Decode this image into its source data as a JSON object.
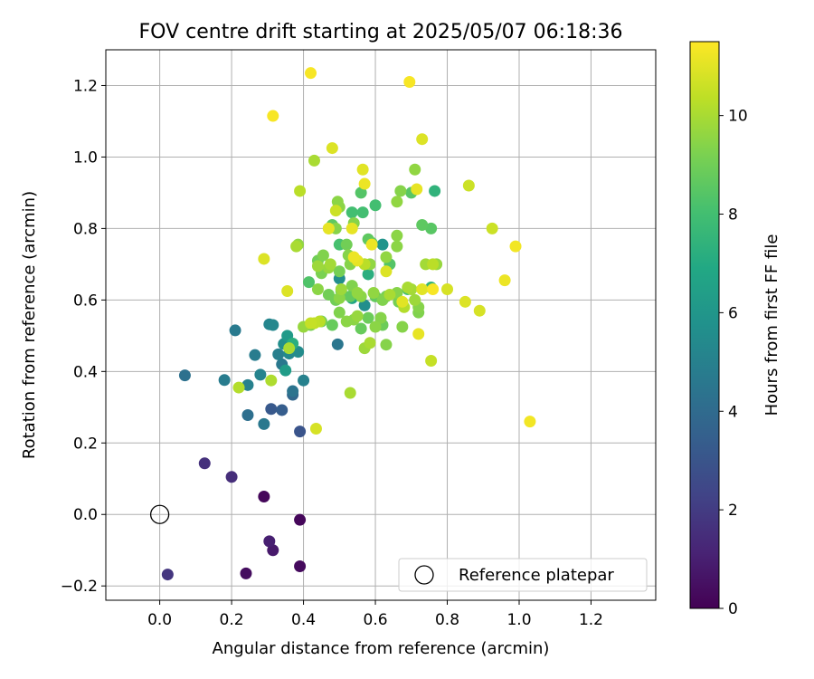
{
  "chart_data": {
    "type": "scatter",
    "title": "FOV centre drift starting at 2025/05/07 06:18:36",
    "xlabel": "Angular distance from reference (arcmin)",
    "ylabel": "Rotation from reference (arcmin)",
    "xlim": [
      -0.15,
      1.38
    ],
    "ylim": [
      -0.24,
      1.3
    ],
    "xticks": [
      0.0,
      0.2,
      0.4,
      0.6,
      0.8,
      1.0,
      1.2
    ],
    "xtick_labels": [
      "0.0",
      "0.2",
      "0.4",
      "0.6",
      "0.8",
      "1.0",
      "1.2"
    ],
    "yticks": [
      -0.2,
      0.0,
      0.2,
      0.4,
      0.6,
      0.8,
      1.0,
      1.2
    ],
    "ytick_labels": [
      "−0.2",
      "0.0",
      "0.2",
      "0.4",
      "0.6",
      "0.8",
      "1.0",
      "1.2"
    ],
    "grid": true,
    "legend": {
      "placement": "lower-right",
      "entries": [
        "Reference platepar"
      ]
    },
    "colorbar": {
      "label": "Hours from first FF file",
      "range": [
        0,
        11.5
      ],
      "ticks": [
        0,
        2,
        4,
        6,
        8,
        10
      ],
      "tick_labels": [
        "0",
        "2",
        "4",
        "6",
        "8",
        "10"
      ],
      "colormap": "viridis"
    },
    "reference": {
      "label": "Reference platepar",
      "x": 0.0,
      "y": 0.0
    },
    "points": [
      {
        "x": 0.29,
        "y": 0.05,
        "t": 0.2
      },
      {
        "x": 0.39,
        "y": -0.015,
        "t": 0.2
      },
      {
        "x": 0.39,
        "y": -0.145,
        "t": 0.3
      },
      {
        "x": 0.24,
        "y": -0.165,
        "t": 0.4
      },
      {
        "x": 0.315,
        "y": -0.1,
        "t": 0.8
      },
      {
        "x": 0.305,
        "y": -0.075,
        "t": 1.0
      },
      {
        "x": 0.2,
        "y": 0.105,
        "t": 1.5
      },
      {
        "x": 0.125,
        "y": 0.143,
        "t": 1.6
      },
      {
        "x": 0.022,
        "y": -0.168,
        "t": 1.8
      },
      {
        "x": 0.39,
        "y": 0.232,
        "t": 3.0
      },
      {
        "x": 0.31,
        "y": 0.295,
        "t": 3.2
      },
      {
        "x": 0.34,
        "y": 0.292,
        "t": 3.4
      },
      {
        "x": 0.37,
        "y": 0.335,
        "t": 3.8
      },
      {
        "x": 0.245,
        "y": 0.278,
        "t": 4.2
      },
      {
        "x": 0.07,
        "y": 0.389,
        "t": 4.3
      },
      {
        "x": 0.37,
        "y": 0.345,
        "t": 4.4
      },
      {
        "x": 0.495,
        "y": 0.476,
        "t": 4.5
      },
      {
        "x": 0.29,
        "y": 0.253,
        "t": 4.6
      },
      {
        "x": 0.34,
        "y": 0.42,
        "t": 4.6
      },
      {
        "x": 0.21,
        "y": 0.515,
        "t": 4.7
      },
      {
        "x": 0.18,
        "y": 0.376,
        "t": 4.8
      },
      {
        "x": 0.265,
        "y": 0.446,
        "t": 4.8
      },
      {
        "x": 0.33,
        "y": 0.448,
        "t": 4.9
      },
      {
        "x": 0.4,
        "y": 0.375,
        "t": 5.0
      },
      {
        "x": 0.245,
        "y": 0.362,
        "t": 5.0
      },
      {
        "x": 0.28,
        "y": 0.391,
        "t": 5.1
      },
      {
        "x": 0.305,
        "y": 0.532,
        "t": 5.2
      },
      {
        "x": 0.315,
        "y": 0.53,
        "t": 5.3
      },
      {
        "x": 0.36,
        "y": 0.45,
        "t": 5.4
      },
      {
        "x": 0.385,
        "y": 0.455,
        "t": 5.5
      },
      {
        "x": 0.345,
        "y": 0.477,
        "t": 5.6
      },
      {
        "x": 0.5,
        "y": 0.66,
        "t": 5.6
      },
      {
        "x": 0.57,
        "y": 0.585,
        "t": 5.6
      },
      {
        "x": 0.62,
        "y": 0.755,
        "t": 5.9
      },
      {
        "x": 0.355,
        "y": 0.5,
        "t": 6.2
      },
      {
        "x": 0.35,
        "y": 0.403,
        "t": 6.3
      },
      {
        "x": 0.535,
        "y": 0.605,
        "t": 6.8
      },
      {
        "x": 0.37,
        "y": 0.478,
        "t": 7.2
      },
      {
        "x": 0.58,
        "y": 0.672,
        "t": 7.2
      },
      {
        "x": 0.765,
        "y": 0.905,
        "t": 7.4
      },
      {
        "x": 0.755,
        "y": 0.635,
        "t": 7.5
      },
      {
        "x": 0.535,
        "y": 0.845,
        "t": 8.0
      },
      {
        "x": 0.565,
        "y": 0.845,
        "t": 8.0
      },
      {
        "x": 0.6,
        "y": 0.865,
        "t": 8.0
      },
      {
        "x": 0.69,
        "y": 0.63,
        "t": 8.1
      },
      {
        "x": 0.5,
        "y": 0.755,
        "t": 8.1
      },
      {
        "x": 0.415,
        "y": 0.65,
        "t": 8.3
      },
      {
        "x": 0.56,
        "y": 0.9,
        "t": 8.4
      },
      {
        "x": 0.64,
        "y": 0.7,
        "t": 8.4
      },
      {
        "x": 0.7,
        "y": 0.9,
        "t": 8.5
      },
      {
        "x": 0.755,
        "y": 0.8,
        "t": 8.5
      },
      {
        "x": 0.73,
        "y": 0.81,
        "t": 8.6
      },
      {
        "x": 0.48,
        "y": 0.81,
        "t": 8.6
      },
      {
        "x": 0.58,
        "y": 0.77,
        "t": 8.6
      },
      {
        "x": 0.59,
        "y": 0.76,
        "t": 8.7
      },
      {
        "x": 0.53,
        "y": 0.61,
        "t": 8.7
      },
      {
        "x": 0.6,
        "y": 0.61,
        "t": 8.7
      },
      {
        "x": 0.56,
        "y": 0.52,
        "t": 8.8
      },
      {
        "x": 0.48,
        "y": 0.53,
        "t": 8.8
      },
      {
        "x": 0.505,
        "y": 0.625,
        "t": 8.8
      },
      {
        "x": 0.58,
        "y": 0.55,
        "t": 8.9
      },
      {
        "x": 0.62,
        "y": 0.53,
        "t": 8.9
      },
      {
        "x": 0.49,
        "y": 0.6,
        "t": 9.0
      },
      {
        "x": 0.44,
        "y": 0.71,
        "t": 9.0
      },
      {
        "x": 0.57,
        "y": 0.7,
        "t": 9.0
      },
      {
        "x": 0.52,
        "y": 0.755,
        "t": 9.0
      },
      {
        "x": 0.47,
        "y": 0.615,
        "t": 9.0
      },
      {
        "x": 0.45,
        "y": 0.54,
        "t": 9.1
      },
      {
        "x": 0.5,
        "y": 0.68,
        "t": 9.1
      },
      {
        "x": 0.63,
        "y": 0.61,
        "t": 9.1
      },
      {
        "x": 0.665,
        "y": 0.595,
        "t": 9.1
      },
      {
        "x": 0.42,
        "y": 0.53,
        "t": 9.2
      },
      {
        "x": 0.45,
        "y": 0.675,
        "t": 9.2
      },
      {
        "x": 0.72,
        "y": 0.565,
        "t": 9.3
      },
      {
        "x": 0.62,
        "y": 0.6,
        "t": 9.3
      },
      {
        "x": 0.535,
        "y": 0.64,
        "t": 9.3
      },
      {
        "x": 0.5,
        "y": 0.565,
        "t": 9.3
      },
      {
        "x": 0.455,
        "y": 0.725,
        "t": 9.3
      },
      {
        "x": 0.54,
        "y": 0.815,
        "t": 9.4
      },
      {
        "x": 0.525,
        "y": 0.725,
        "t": 9.4
      },
      {
        "x": 0.675,
        "y": 0.525,
        "t": 9.4
      },
      {
        "x": 0.615,
        "y": 0.55,
        "t": 9.4
      },
      {
        "x": 0.67,
        "y": 0.905,
        "t": 9.4
      },
      {
        "x": 0.53,
        "y": 0.7,
        "t": 9.4
      },
      {
        "x": 0.63,
        "y": 0.475,
        "t": 9.4
      },
      {
        "x": 0.66,
        "y": 0.62,
        "t": 9.4
      },
      {
        "x": 0.49,
        "y": 0.8,
        "t": 9.4
      },
      {
        "x": 0.72,
        "y": 0.58,
        "t": 9.4
      },
      {
        "x": 0.54,
        "y": 0.545,
        "t": 9.5
      },
      {
        "x": 0.52,
        "y": 0.54,
        "t": 9.5
      },
      {
        "x": 0.5,
        "y": 0.605,
        "t": 9.5
      },
      {
        "x": 0.6,
        "y": 0.525,
        "t": 9.5
      },
      {
        "x": 0.5,
        "y": 0.86,
        "t": 9.5
      },
      {
        "x": 0.495,
        "y": 0.875,
        "t": 9.5
      },
      {
        "x": 0.44,
        "y": 0.63,
        "t": 9.5
      },
      {
        "x": 0.66,
        "y": 0.75,
        "t": 9.5
      },
      {
        "x": 0.66,
        "y": 0.78,
        "t": 9.5
      },
      {
        "x": 0.56,
        "y": 0.61,
        "t": 9.5
      },
      {
        "x": 0.71,
        "y": 0.965,
        "t": 9.6
      },
      {
        "x": 0.595,
        "y": 0.62,
        "t": 9.6
      },
      {
        "x": 0.66,
        "y": 0.875,
        "t": 9.6
      },
      {
        "x": 0.385,
        "y": 0.755,
        "t": 9.6
      },
      {
        "x": 0.55,
        "y": 0.62,
        "t": 9.6
      },
      {
        "x": 0.63,
        "y": 0.72,
        "t": 9.6
      },
      {
        "x": 0.585,
        "y": 0.7,
        "t": 9.6
      },
      {
        "x": 0.77,
        "y": 0.7,
        "t": 9.7
      },
      {
        "x": 0.55,
        "y": 0.555,
        "t": 9.7
      },
      {
        "x": 0.4,
        "y": 0.525,
        "t": 9.7
      },
      {
        "x": 0.47,
        "y": 0.69,
        "t": 9.7
      },
      {
        "x": 0.44,
        "y": 0.695,
        "t": 9.8
      },
      {
        "x": 0.505,
        "y": 0.63,
        "t": 9.8
      },
      {
        "x": 0.57,
        "y": 0.465,
        "t": 9.8
      },
      {
        "x": 0.71,
        "y": 0.6,
        "t": 9.8
      },
      {
        "x": 0.74,
        "y": 0.7,
        "t": 9.9
      },
      {
        "x": 0.475,
        "y": 0.7,
        "t": 9.9
      },
      {
        "x": 0.7,
        "y": 0.63,
        "t": 9.9
      },
      {
        "x": 0.53,
        "y": 0.34,
        "t": 10.0
      },
      {
        "x": 0.38,
        "y": 0.75,
        "t": 10.0
      },
      {
        "x": 0.47,
        "y": 0.8,
        "t": 10.0
      },
      {
        "x": 0.43,
        "y": 0.99,
        "t": 10.0
      },
      {
        "x": 0.585,
        "y": 0.48,
        "t": 10.0
      },
      {
        "x": 0.64,
        "y": 0.615,
        "t": 10.0
      },
      {
        "x": 0.69,
        "y": 0.635,
        "t": 10.0
      },
      {
        "x": 0.36,
        "y": 0.465,
        "t": 10.0
      },
      {
        "x": 0.31,
        "y": 0.375,
        "t": 10.1
      },
      {
        "x": 0.22,
        "y": 0.355,
        "t": 10.2
      },
      {
        "x": 0.68,
        "y": 0.58,
        "t": 10.2
      },
      {
        "x": 0.76,
        "y": 0.7,
        "t": 10.3
      },
      {
        "x": 0.39,
        "y": 0.905,
        "t": 10.3
      },
      {
        "x": 0.57,
        "y": 0.7,
        "t": 10.3
      },
      {
        "x": 0.445,
        "y": 0.54,
        "t": 10.3
      },
      {
        "x": 0.43,
        "y": 0.535,
        "t": 10.4
      },
      {
        "x": 0.755,
        "y": 0.43,
        "t": 10.5
      },
      {
        "x": 0.42,
        "y": 0.535,
        "t": 10.5
      },
      {
        "x": 0.49,
        "y": 0.85,
        "t": 10.6
      },
      {
        "x": 0.86,
        "y": 0.92,
        "t": 10.6
      },
      {
        "x": 0.925,
        "y": 0.8,
        "t": 10.6
      },
      {
        "x": 0.8,
        "y": 0.63,
        "t": 10.8
      },
      {
        "x": 0.89,
        "y": 0.57,
        "t": 10.8
      },
      {
        "x": 0.435,
        "y": 0.24,
        "t": 10.8
      },
      {
        "x": 0.48,
        "y": 1.025,
        "t": 10.9
      },
      {
        "x": 0.73,
        "y": 1.05,
        "t": 10.9
      },
      {
        "x": 0.85,
        "y": 0.595,
        "t": 10.9
      },
      {
        "x": 0.355,
        "y": 0.625,
        "t": 10.9
      },
      {
        "x": 0.29,
        "y": 0.715,
        "t": 10.9
      },
      {
        "x": 0.63,
        "y": 0.68,
        "t": 10.9
      },
      {
        "x": 0.565,
        "y": 0.965,
        "t": 11.0
      },
      {
        "x": 0.675,
        "y": 0.595,
        "t": 11.0
      },
      {
        "x": 0.73,
        "y": 0.63,
        "t": 11.0
      },
      {
        "x": 0.715,
        "y": 0.91,
        "t": 11.1
      },
      {
        "x": 0.55,
        "y": 0.71,
        "t": 11.1
      },
      {
        "x": 0.47,
        "y": 0.8,
        "t": 11.1
      },
      {
        "x": 0.535,
        "y": 0.8,
        "t": 11.1
      },
      {
        "x": 0.72,
        "y": 0.505,
        "t": 11.1
      },
      {
        "x": 0.59,
        "y": 0.755,
        "t": 11.2
      },
      {
        "x": 0.54,
        "y": 0.72,
        "t": 11.2
      },
      {
        "x": 0.57,
        "y": 0.925,
        "t": 11.2
      },
      {
        "x": 0.96,
        "y": 0.655,
        "t": 11.2
      },
      {
        "x": 0.99,
        "y": 0.75,
        "t": 11.3
      },
      {
        "x": 1.03,
        "y": 0.26,
        "t": 11.3
      },
      {
        "x": 0.42,
        "y": 1.235,
        "t": 11.4
      },
      {
        "x": 0.315,
        "y": 1.115,
        "t": 11.4
      },
      {
        "x": 0.695,
        "y": 1.21,
        "t": 11.4
      },
      {
        "x": 0.76,
        "y": 0.63,
        "t": 11.4
      }
    ]
  }
}
